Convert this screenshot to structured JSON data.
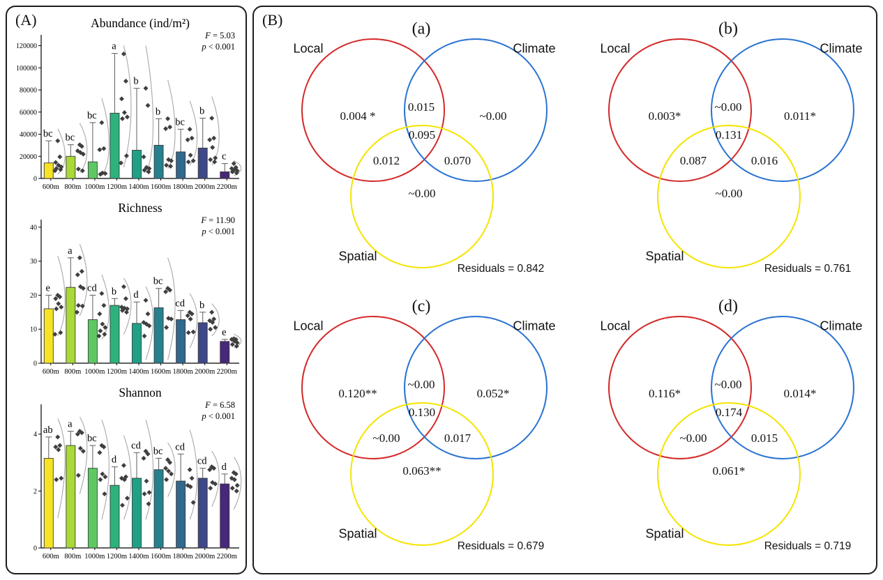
{
  "panelA": {
    "label": "(A)"
  },
  "panelB": {
    "label": "(B)"
  },
  "chart_data": [
    {
      "type": "bar",
      "title": "Abundance (ind/m²)",
      "stat_f": "F = 5.03",
      "stat_p": "p < 0.001",
      "categories": [
        "600m",
        "800m",
        "1000m",
        "1200m",
        "1400m",
        "1600m",
        "1800m",
        "2000m",
        "2200m"
      ],
      "bar_values": [
        14000,
        20000,
        15000,
        59000,
        25500,
        30000,
        24000,
        27500,
        6000
      ],
      "error_top": [
        34000,
        30500,
        50500,
        113000,
        81500,
        54000,
        44500,
        54500,
        13500
      ],
      "sig_letters": [
        "bc",
        "bc",
        "bc",
        "a",
        "b",
        "b",
        "bc",
        "b",
        "c"
      ],
      "points": [
        [
          34000,
          19500,
          14500,
          12000,
          10500,
          9000,
          8000,
          7000
        ],
        [
          30500,
          29000,
          25000,
          23500,
          22000,
          8500,
          7000
        ],
        [
          50500,
          27000,
          26000,
          5000,
          4500,
          3800
        ],
        [
          112500,
          88000,
          72000,
          59500,
          55500,
          54000,
          20500,
          14000
        ],
        [
          81500,
          66000,
          19500,
          10000,
          9000,
          7500,
          6000
        ],
        [
          54000,
          46500,
          45000,
          17000,
          16000,
          12000,
          11000
        ],
        [
          44500,
          36500,
          35000,
          21000,
          16000,
          15000
        ],
        [
          54500,
          36500,
          35000,
          28000,
          18500,
          17000,
          15000
        ],
        [
          13500,
          10000,
          9000,
          8000,
          7000,
          6000,
          5000
        ]
      ],
      "violin_range": [
        [
          4000,
          45000
        ],
        [
          5000,
          50000
        ],
        [
          2500,
          72500
        ],
        [
          10000,
          120000
        ],
        [
          5000,
          120000
        ],
        [
          9000,
          89000
        ],
        [
          12000,
          70000
        ],
        [
          12000,
          74000
        ],
        [
          2500,
          16000
        ]
      ],
      "bar_colors": [
        "#F8E224",
        "#A8D938",
        "#5EC962",
        "#2DB27D",
        "#1FA187",
        "#27808E",
        "#31688E",
        "#3E4989",
        "#482878"
      ],
      "yticks": [
        0,
        20000,
        40000,
        60000,
        80000,
        100000,
        120000
      ],
      "ylim": [
        0,
        126000
      ],
      "xlabel": "",
      "ylabel": "",
      "grid": false
    },
    {
      "type": "bar",
      "title": "Richness",
      "stat_f": "F = 11.90",
      "stat_p": "p < 0.001",
      "categories": [
        "600m",
        "800m",
        "1000m",
        "1200m",
        "1400m",
        "1600m",
        "1800m",
        "2000m",
        "2200m"
      ],
      "bar_values": [
        16,
        22.3,
        12.8,
        17,
        11.7,
        16.3,
        12.8,
        11.9,
        6.4
      ],
      "error_top": [
        20,
        31,
        20,
        19,
        18,
        22,
        15.5,
        15,
        7
      ],
      "sig_letters": [
        "e",
        "a",
        "cd",
        "b",
        "d",
        "bc",
        "cd",
        "b",
        "e"
      ],
      "points": [
        [
          20,
          19.5,
          19,
          17.5,
          16.5,
          16,
          9,
          8.5
        ],
        [
          31,
          27,
          26,
          22.5,
          22,
          17,
          16.8,
          15
        ],
        [
          20.5,
          17,
          14.5,
          11.5,
          10.5,
          9.5,
          8.5,
          8
        ],
        [
          22.5,
          19,
          16.5,
          16.2,
          16,
          15.5,
          15
        ],
        [
          18.5,
          14.5,
          12,
          11.5,
          11,
          8
        ],
        [
          22,
          21.5,
          21,
          13.2,
          13,
          10.5
        ],
        [
          15,
          14.5,
          14,
          13,
          9.2,
          9
        ],
        [
          15,
          13,
          12.5,
          12,
          10.5,
          10
        ],
        [
          7.2,
          7,
          7,
          6.5,
          6,
          5.5,
          5
        ]
      ],
      "violin_range": [
        [
          8,
          31.5
        ],
        [
          14,
          35
        ],
        [
          7,
          26
        ],
        [
          8.5,
          25
        ],
        [
          1,
          22.5
        ],
        [
          1,
          31
        ],
        [
          4.5,
          20.5
        ],
        [
          8,
          17.5
        ],
        [
          4.5,
          8.5
        ]
      ],
      "bar_colors": [
        "#F8E224",
        "#A8D938",
        "#5EC962",
        "#2DB27D",
        "#1FA187",
        "#27808E",
        "#31688E",
        "#3E4989",
        "#482878"
      ],
      "yticks": [
        0,
        10,
        20,
        30,
        40
      ],
      "ylim": [
        0,
        41
      ],
      "xlabel": "",
      "ylabel": "",
      "grid": false
    },
    {
      "type": "bar",
      "title": "Shannon",
      "stat_f": "F = 6.58",
      "stat_p": "p < 0.001",
      "categories": [
        "600m",
        "800m",
        "1000m",
        "1200m",
        "1400m",
        "1600m",
        "1800m",
        "2000m",
        "2200m"
      ],
      "bar_values": [
        3.15,
        3.6,
        2.8,
        2.2,
        2.45,
        2.75,
        2.35,
        2.45,
        2.25
      ],
      "error_top": [
        3.9,
        4.1,
        3.6,
        2.85,
        3.35,
        3.15,
        3.3,
        2.8,
        2.6
      ],
      "sig_letters": [
        "ab",
        "a",
        "bc",
        "d",
        "cd",
        "bc",
        "cd",
        "cd",
        "d"
      ],
      "points": [
        [
          3.9,
          3.6,
          3.55,
          3.45,
          2.45,
          2.4
        ],
        [
          4.1,
          4.05,
          4.0,
          3.5,
          3.4,
          2.55
        ],
        [
          3.6,
          3.55,
          3.35,
          2.6,
          2.5,
          2.4,
          1.9
        ],
        [
          2.9,
          2.5,
          2.45,
          2.4,
          1.75,
          1.5
        ],
        [
          3.4,
          3.3,
          3.15,
          2.35,
          1.95,
          1.9,
          1.55
        ],
        [
          3.1,
          3.0,
          2.8,
          2.7,
          2.6,
          2.4
        ],
        [
          2.75,
          2.45,
          2.2,
          2.15,
          1.6
        ],
        [
          2.85,
          2.8,
          2.75,
          2.3,
          2.25,
          2.1
        ],
        [
          2.65,
          2.6,
          2.45,
          2.4,
          2.2,
          2.1,
          2.0
        ]
      ],
      "violin_range": [
        [
          1.05,
          4.55
        ],
        [
          1.9,
          4.6
        ],
        [
          1.0,
          4.5
        ],
        [
          1.0,
          3.95
        ],
        [
          1.0,
          4.5
        ],
        [
          1.8,
          3.7
        ],
        [
          1.0,
          4.15
        ],
        [
          1.45,
          3.4
        ],
        [
          1.35,
          3.2
        ]
      ],
      "bar_colors": [
        "#F8E224",
        "#A8D938",
        "#5EC962",
        "#2DB27D",
        "#1FA187",
        "#27808E",
        "#31688E",
        "#3E4989",
        "#482878"
      ],
      "yticks": [
        0,
        2,
        4
      ],
      "ylim": [
        0,
        4.9
      ],
      "xlabel": "",
      "ylabel": "",
      "grid": false
    },
    {
      "type": "venn",
      "title": "(a)",
      "sets": {
        "local": "Local",
        "climate": "Climate",
        "spatial": "Spatial"
      },
      "colors": {
        "local": "#D42A2A",
        "climate": "#2B74D2",
        "spatial": "#F5E400"
      },
      "values": {
        "local": "0.004 *",
        "local_climate": "0.015",
        "climate": "~0.00",
        "local_climate_spatial": "0.095",
        "local_spatial": "0.012",
        "climate_spatial": "0.070",
        "spatial": "~0.00"
      },
      "residuals": "Residuals = 0.842"
    },
    {
      "type": "venn",
      "title": "(b)",
      "sets": {
        "local": "Local",
        "climate": "Climate",
        "spatial": "Spatial"
      },
      "colors": {
        "local": "#D42A2A",
        "climate": "#2B74D2",
        "spatial": "#F5E400"
      },
      "values": {
        "local": "0.003*",
        "local_climate": "~0.00",
        "climate": "0.011*",
        "local_climate_spatial": "0.131",
        "local_spatial": "0.087",
        "climate_spatial": "0.016",
        "spatial": "~0.00"
      },
      "residuals": "Residuals = 0.761"
    },
    {
      "type": "venn",
      "title": "(c)",
      "sets": {
        "local": "Local",
        "climate": "Climate",
        "spatial": "Spatial"
      },
      "colors": {
        "local": "#D42A2A",
        "climate": "#2B74D2",
        "spatial": "#F5E400"
      },
      "values": {
        "local": "0.120**",
        "local_climate": "~0.00",
        "climate": "0.052*",
        "local_climate_spatial": "0.130",
        "local_spatial": "~0.00",
        "climate_spatial": "0.017",
        "spatial": "0.063**"
      },
      "residuals": "Residuals = 0.679"
    },
    {
      "type": "venn",
      "title": "(d)",
      "sets": {
        "local": "Local",
        "climate": "Climate",
        "spatial": "Spatial"
      },
      "colors": {
        "local": "#D42A2A",
        "climate": "#2B74D2",
        "spatial": "#F5E400"
      },
      "values": {
        "local": "0.116*",
        "local_climate": "~0.00",
        "climate": "0.014*",
        "local_climate_spatial": "0.174",
        "local_spatial": "~0.00",
        "climate_spatial": "0.015",
        "spatial": "0.061*"
      },
      "residuals": "Residuals = 0.719"
    }
  ]
}
